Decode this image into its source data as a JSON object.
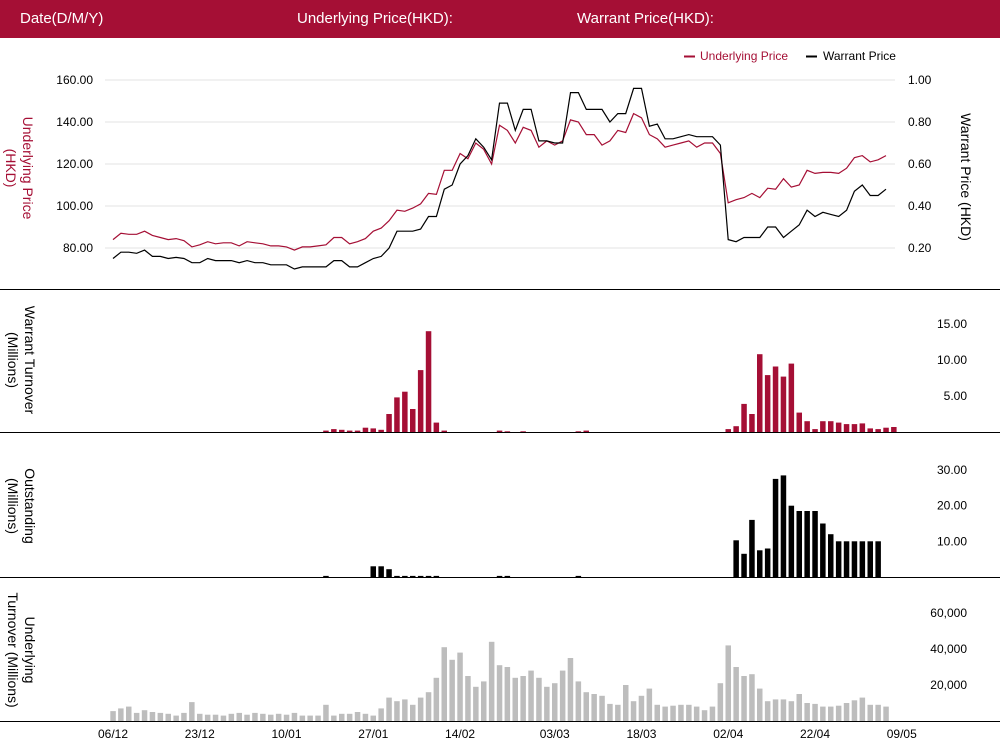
{
  "header": {
    "date_label": "Date(D/M/Y)",
    "underlying_label": "Underlying Price(HKD):",
    "warrant_label": "Warrant Price(HKD):"
  },
  "colors": {
    "brand": "#a50f35",
    "underlying": "#a50f35",
    "warrant": "#000000",
    "underlying_turnover": "#bdbdbd"
  },
  "chart_data": [
    {
      "type": "line",
      "panel": "price",
      "legend": {
        "placement": "top-right",
        "items": [
          "Underlying Price",
          "Warrant Price"
        ]
      },
      "y_left": {
        "label": "Underlying Price (HKD)",
        "ticks": [
          "160.00",
          "140.00",
          "120.00",
          "100.00",
          "80.00"
        ],
        "range": [
          70,
          160
        ]
      },
      "y_right": {
        "label": "Warrant Price (HKD)",
        "ticks": [
          "1.00",
          "0.80",
          "0.60",
          "0.40",
          "0.20"
        ],
        "range": [
          0.1,
          1.0
        ]
      },
      "x_ticks": [
        {
          "label": "06/12",
          "index": 0
        },
        {
          "label": "23/12",
          "index": 11
        },
        {
          "label": "10/01",
          "index": 22
        },
        {
          "label": "27/01",
          "index": 33
        },
        {
          "label": "14/02",
          "index": 44
        },
        {
          "label": "03/03",
          "index": 56
        },
        {
          "label": "18/03",
          "index": 67
        },
        {
          "label": "02/04",
          "index": 78
        },
        {
          "label": "22/04",
          "index": 89
        },
        {
          "label": "09/05",
          "index": 100
        }
      ],
      "series": [
        {
          "name": "Underlying Price",
          "axis": "left",
          "values": [
            84,
            87,
            86.5,
            86.5,
            88,
            86,
            85,
            84,
            84.5,
            83.5,
            80.5,
            81.5,
            83,
            82,
            82.5,
            82.5,
            81,
            83,
            82.5,
            82,
            81,
            81,
            80.5,
            79,
            80.5,
            80.5,
            81,
            81.5,
            85,
            85,
            82,
            83,
            84.5,
            88,
            89.5,
            93,
            98,
            97.5,
            99,
            101,
            106,
            105.5,
            117,
            117,
            125,
            122.5,
            130,
            127,
            120,
            138.5,
            136,
            130,
            137.5,
            136,
            128,
            131,
            129,
            131,
            141,
            140,
            134,
            134,
            129,
            131,
            136,
            135,
            144,
            142,
            134,
            132,
            128,
            129,
            130,
            131,
            128,
            130,
            130,
            125,
            101.5,
            103,
            104,
            106,
            104,
            108.5,
            108,
            113,
            109,
            110,
            117,
            115.5,
            116,
            116,
            115.5,
            118,
            123,
            124,
            121,
            122,
            124
          ]
        },
        {
          "name": "Warrant Price",
          "axis": "right",
          "values": [
            0.15,
            0.18,
            0.18,
            0.175,
            0.19,
            0.16,
            0.16,
            0.15,
            0.155,
            0.15,
            0.13,
            0.13,
            0.15,
            0.14,
            0.14,
            0.14,
            0.13,
            0.14,
            0.13,
            0.13,
            0.12,
            0.12,
            0.12,
            0.1,
            0.11,
            0.11,
            0.11,
            0.11,
            0.14,
            0.14,
            0.11,
            0.11,
            0.13,
            0.15,
            0.16,
            0.2,
            0.28,
            0.28,
            0.28,
            0.29,
            0.35,
            0.35,
            0.48,
            0.5,
            0.6,
            0.64,
            0.72,
            0.68,
            0.62,
            0.89,
            0.89,
            0.76,
            0.86,
            0.86,
            0.71,
            0.71,
            0.7,
            0.7,
            0.94,
            0.94,
            0.86,
            0.86,
            0.86,
            0.8,
            0.84,
            0.84,
            0.96,
            0.96,
            0.78,
            0.79,
            0.72,
            0.72,
            0.73,
            0.74,
            0.73,
            0.73,
            0.73,
            0.69,
            0.24,
            0.23,
            0.25,
            0.25,
            0.25,
            0.3,
            0.3,
            0.25,
            0.28,
            0.31,
            0.38,
            0.35,
            0.37,
            0.36,
            0.35,
            0.38,
            0.47,
            0.5,
            0.45,
            0.45,
            0.48
          ]
        }
      ]
    },
    {
      "type": "bar",
      "panel": "warrant_turnover",
      "y_label": "Warrant Turnover (Millions)",
      "y_ticks": [
        "15.00",
        "10.00",
        "5.00"
      ],
      "range": [
        0,
        16
      ],
      "values": [
        0,
        0,
        0,
        0,
        0,
        0,
        0,
        0,
        0,
        0,
        0,
        0,
        0,
        0,
        0,
        0,
        0,
        0,
        0,
        0,
        0,
        0,
        0,
        0,
        0,
        0,
        0,
        0.2,
        0.4,
        0.3,
        0.2,
        0.2,
        0.6,
        0.5,
        0.3,
        2.5,
        4.8,
        5.6,
        3.2,
        8.6,
        14.0,
        1.3,
        0.2,
        0,
        0,
        0,
        0,
        0,
        0,
        0.2,
        0.1,
        0,
        0.1,
        0,
        0,
        0,
        0,
        0,
        0,
        0.1,
        0.2,
        0,
        0,
        0,
        0,
        0,
        0,
        0,
        0,
        0,
        0,
        0,
        0,
        0,
        0,
        0,
        0,
        0,
        0.4,
        0.8,
        3.9,
        2.5,
        10.8,
        7.9,
        9.1,
        7.7,
        9.5,
        2.7,
        1.5,
        0.4,
        1.5,
        1.5,
        1.3,
        1.1,
        1.1,
        1.2,
        0.5,
        0.4,
        0.6,
        0.7
      ]
    },
    {
      "type": "bar",
      "panel": "outstanding",
      "y_label": "Outstanding (Millions)",
      "y_ticks": [
        "30.00",
        "20.00",
        "10.00"
      ],
      "range": [
        0,
        32
      ],
      "values": [
        0,
        0,
        0,
        0,
        0,
        0,
        0,
        0,
        0,
        0,
        0,
        0,
        0,
        0,
        0,
        0,
        0,
        0,
        0,
        0,
        0,
        0,
        0,
        0,
        0,
        0,
        0,
        0.3,
        0,
        0,
        0,
        0,
        0,
        3.0,
        3.0,
        2.2,
        0.3,
        0.3,
        0.3,
        0.3,
        0.3,
        0.3,
        0,
        0,
        0,
        0,
        0,
        0,
        0,
        0.3,
        0.3,
        0,
        0,
        0,
        0,
        0,
        0,
        0,
        0,
        0.3,
        0,
        0,
        0,
        0,
        0,
        0,
        0,
        0,
        0,
        0,
        0,
        0,
        0,
        0,
        0,
        0,
        0,
        0,
        0,
        10.3,
        6.5,
        16.0,
        7.5,
        8.0,
        27.5,
        28.5,
        20.0,
        18.5,
        18.5,
        18.5,
        15.0,
        12.0,
        10.0,
        10.0,
        10.0,
        10.0,
        10.0,
        10.0,
        0
      ]
    },
    {
      "type": "bar",
      "panel": "underlying_turnover",
      "y_label": "Underlying Turnover (Millions)",
      "y_ticks": [
        "60,000",
        "40,000",
        "20,000"
      ],
      "range": [
        0,
        65000
      ],
      "values": [
        5500,
        7000,
        8000,
        4500,
        6000,
        5000,
        4500,
        4000,
        3000,
        4500,
        10500,
        4000,
        3500,
        3500,
        3000,
        4000,
        4500,
        3500,
        4500,
        4000,
        3500,
        4000,
        3500,
        4500,
        3000,
        3000,
        3000,
        9000,
        3000,
        4000,
        4000,
        5000,
        4000,
        3000,
        7000,
        13000,
        11000,
        12000,
        9000,
        13000,
        16000,
        24000,
        41000,
        34000,
        38000,
        25000,
        19000,
        22000,
        44000,
        31000,
        30000,
        24000,
        25000,
        28000,
        24000,
        19000,
        21000,
        28000,
        35000,
        22000,
        16000,
        15000,
        14000,
        9500,
        9000,
        20000,
        11000,
        14000,
        18000,
        9000,
        8000,
        8500,
        9000,
        9000,
        8000,
        6000,
        8000,
        21000,
        42000,
        30000,
        25000,
        26000,
        18000,
        11000,
        12000,
        12000,
        11000,
        15000,
        10000,
        9500,
        8000,
        8000,
        8500,
        10000,
        11500,
        13000,
        9000,
        9000,
        8000
      ]
    }
  ]
}
